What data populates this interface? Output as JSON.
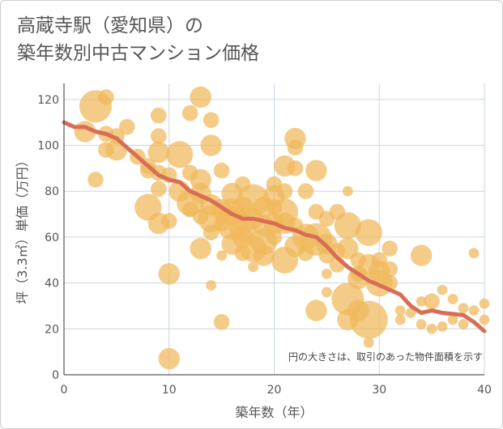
{
  "title": {
    "line1": "高蔵寺駅（愛知県）の",
    "line2": "築年数別中古マンション価格"
  },
  "colors": {
    "bubble": "#f0b85a",
    "trend": "#d86e55",
    "grid": "#c9d6e3",
    "axis": "#333333"
  },
  "chart_data": {
    "type": "scatter",
    "xlabel": "築年数（年）",
    "ylabel": "坪（3.3㎡）単価（万円）",
    "xlim": [
      0,
      40
    ],
    "ylim": [
      0,
      127
    ],
    "xticks": [
      "0",
      "10",
      "20",
      "30",
      "40"
    ],
    "yticks": [
      "0",
      "20",
      "40",
      "60",
      "80",
      "100",
      "120"
    ],
    "xtick_values": [
      0,
      10,
      20,
      30,
      40
    ],
    "ytick_values": [
      0,
      20,
      40,
      60,
      80,
      100,
      120
    ],
    "grid": true,
    "annotation": "円の大きさは、取引のあった物件面積を示す",
    "points": [
      {
        "x": 3,
        "y": 117,
        "s": 5
      },
      {
        "x": 4,
        "y": 121,
        "s": 2
      },
      {
        "x": 2,
        "y": 106,
        "s": 3
      },
      {
        "x": 4,
        "y": 105,
        "s": 2
      },
      {
        "x": 5,
        "y": 104,
        "s": 2
      },
      {
        "x": 6,
        "y": 108,
        "s": 2
      },
      {
        "x": 5,
        "y": 98,
        "s": 3
      },
      {
        "x": 4,
        "y": 98,
        "s": 2
      },
      {
        "x": 3,
        "y": 85,
        "s": 2
      },
      {
        "x": 7,
        "y": 95,
        "s": 2
      },
      {
        "x": 8,
        "y": 91,
        "s": 2
      },
      {
        "x": 8,
        "y": 89,
        "s": 2
      },
      {
        "x": 9,
        "y": 113,
        "s": 2
      },
      {
        "x": 9,
        "y": 104,
        "s": 2
      },
      {
        "x": 9,
        "y": 97,
        "s": 3
      },
      {
        "x": 9,
        "y": 88,
        "s": 2
      },
      {
        "x": 9,
        "y": 81,
        "s": 2
      },
      {
        "x": 8,
        "y": 73,
        "s": 4
      },
      {
        "x": 9,
        "y": 66,
        "s": 3
      },
      {
        "x": 10,
        "y": 87,
        "s": 2
      },
      {
        "x": 10,
        "y": 67,
        "s": 2
      },
      {
        "x": 10,
        "y": 44,
        "s": 3
      },
      {
        "x": 10,
        "y": 7,
        "s": 3
      },
      {
        "x": 11,
        "y": 96,
        "s": 4
      },
      {
        "x": 11,
        "y": 80,
        "s": 3
      },
      {
        "x": 12,
        "y": 114,
        "s": 2
      },
      {
        "x": 12,
        "y": 88,
        "s": 2
      },
      {
        "x": 12,
        "y": 75,
        "s": 4
      },
      {
        "x": 12,
        "y": 72,
        "s": 2
      },
      {
        "x": 13,
        "y": 121,
        "s": 3
      },
      {
        "x": 13,
        "y": 85,
        "s": 3
      },
      {
        "x": 13,
        "y": 79,
        "s": 3
      },
      {
        "x": 13,
        "y": 69,
        "s": 2
      },
      {
        "x": 13,
        "y": 55,
        "s": 3
      },
      {
        "x": 14,
        "y": 111,
        "s": 2
      },
      {
        "x": 14,
        "y": 100,
        "s": 3
      },
      {
        "x": 14,
        "y": 74,
        "s": 3
      },
      {
        "x": 14,
        "y": 68,
        "s": 4
      },
      {
        "x": 14,
        "y": 62,
        "s": 2
      },
      {
        "x": 14,
        "y": 39,
        "s": 1
      },
      {
        "x": 15,
        "y": 89,
        "s": 2
      },
      {
        "x": 15,
        "y": 72,
        "s": 3
      },
      {
        "x": 15,
        "y": 66,
        "s": 2
      },
      {
        "x": 15,
        "y": 52,
        "s": 1
      },
      {
        "x": 15,
        "y": 23,
        "s": 2
      },
      {
        "x": 16,
        "y": 79,
        "s": 3
      },
      {
        "x": 16,
        "y": 71,
        "s": 4
      },
      {
        "x": 16,
        "y": 66,
        "s": 5
      },
      {
        "x": 16,
        "y": 57,
        "s": 3
      },
      {
        "x": 17,
        "y": 83,
        "s": 2
      },
      {
        "x": 17,
        "y": 73,
        "s": 3
      },
      {
        "x": 17,
        "y": 64,
        "s": 4
      },
      {
        "x": 17,
        "y": 60,
        "s": 3
      },
      {
        "x": 17,
        "y": 53,
        "s": 2
      },
      {
        "x": 18,
        "y": 76,
        "s": 5
      },
      {
        "x": 18,
        "y": 68,
        "s": 3
      },
      {
        "x": 18,
        "y": 55,
        "s": 4
      },
      {
        "x": 18,
        "y": 47,
        "s": 1
      },
      {
        "x": 19,
        "y": 73,
        "s": 3
      },
      {
        "x": 19,
        "y": 65,
        "s": 3
      },
      {
        "x": 19,
        "y": 58,
        "s": 4
      },
      {
        "x": 19,
        "y": 52,
        "s": 3
      },
      {
        "x": 20,
        "y": 83,
        "s": 2
      },
      {
        "x": 20,
        "y": 78,
        "s": 3
      },
      {
        "x": 20,
        "y": 73,
        "s": 2
      },
      {
        "x": 20,
        "y": 66,
        "s": 3
      },
      {
        "x": 20,
        "y": 60,
        "s": 2
      },
      {
        "x": 21,
        "y": 91,
        "s": 3
      },
      {
        "x": 21,
        "y": 80,
        "s": 2
      },
      {
        "x": 21,
        "y": 71,
        "s": 4
      },
      {
        "x": 21,
        "y": 66,
        "s": 3
      },
      {
        "x": 21,
        "y": 50,
        "s": 4
      },
      {
        "x": 22,
        "y": 103,
        "s": 3
      },
      {
        "x": 22,
        "y": 99,
        "s": 2
      },
      {
        "x": 22,
        "y": 90,
        "s": 2
      },
      {
        "x": 22,
        "y": 65,
        "s": 2
      },
      {
        "x": 22,
        "y": 56,
        "s": 3
      },
      {
        "x": 23,
        "y": 80,
        "s": 2
      },
      {
        "x": 23,
        "y": 60,
        "s": 4
      },
      {
        "x": 23,
        "y": 53,
        "s": 2
      },
      {
        "x": 24,
        "y": 89,
        "s": 3
      },
      {
        "x": 24,
        "y": 71,
        "s": 2
      },
      {
        "x": 24,
        "y": 59,
        "s": 5
      },
      {
        "x": 24,
        "y": 28,
        "s": 3
      },
      {
        "x": 25,
        "y": 68,
        "s": 2
      },
      {
        "x": 25,
        "y": 57,
        "s": 3
      },
      {
        "x": 25,
        "y": 52,
        "s": 2
      },
      {
        "x": 25,
        "y": 36,
        "s": 1
      },
      {
        "x": 25,
        "y": 44,
        "s": 1
      },
      {
        "x": 26,
        "y": 71,
        "s": 2
      },
      {
        "x": 26,
        "y": 54,
        "s": 2
      },
      {
        "x": 26,
        "y": 48,
        "s": 2
      },
      {
        "x": 27,
        "y": 80,
        "s": 1
      },
      {
        "x": 27,
        "y": 65,
        "s": 4
      },
      {
        "x": 27,
        "y": 55,
        "s": 3
      },
      {
        "x": 27,
        "y": 33,
        "s": 5
      },
      {
        "x": 27,
        "y": 24,
        "s": 3
      },
      {
        "x": 28,
        "y": 50,
        "s": 2
      },
      {
        "x": 28,
        "y": 44,
        "s": 2
      },
      {
        "x": 28,
        "y": 42,
        "s": 3
      },
      {
        "x": 28,
        "y": 28,
        "s": 3
      },
      {
        "x": 29,
        "y": 62,
        "s": 4
      },
      {
        "x": 29,
        "y": 48,
        "s": 3
      },
      {
        "x": 29,
        "y": 24,
        "s": 6
      },
      {
        "x": 29,
        "y": 14,
        "s": 1
      },
      {
        "x": 30,
        "y": 50,
        "s": 2
      },
      {
        "x": 30,
        "y": 45,
        "s": 3
      },
      {
        "x": 30,
        "y": 40,
        "s": 4
      },
      {
        "x": 31,
        "y": 55,
        "s": 2
      },
      {
        "x": 31,
        "y": 46,
        "s": 2
      },
      {
        "x": 31,
        "y": 40,
        "s": 2
      },
      {
        "x": 32,
        "y": 28,
        "s": 1
      },
      {
        "x": 32,
        "y": 24,
        "s": 1
      },
      {
        "x": 33,
        "y": 27,
        "s": 1
      },
      {
        "x": 34,
        "y": 52,
        "s": 3
      },
      {
        "x": 34,
        "y": 32,
        "s": 1
      },
      {
        "x": 34,
        "y": 22,
        "s": 1
      },
      {
        "x": 35,
        "y": 32,
        "s": 2
      },
      {
        "x": 35,
        "y": 20,
        "s": 1
      },
      {
        "x": 36,
        "y": 37,
        "s": 1
      },
      {
        "x": 36,
        "y": 21,
        "s": 1
      },
      {
        "x": 37,
        "y": 33,
        "s": 1
      },
      {
        "x": 37,
        "y": 24,
        "s": 1
      },
      {
        "x": 38,
        "y": 29,
        "s": 1
      },
      {
        "x": 38,
        "y": 22,
        "s": 1
      },
      {
        "x": 39,
        "y": 53,
        "s": 1
      },
      {
        "x": 39,
        "y": 28,
        "s": 1
      },
      {
        "x": 40,
        "y": 31,
        "s": 1
      },
      {
        "x": 40,
        "y": 24,
        "s": 1
      }
    ],
    "trend": {
      "name": "",
      "x": [
        0,
        1,
        2,
        3,
        4,
        5,
        6,
        7,
        8,
        9,
        10,
        11,
        12,
        13,
        14,
        15,
        16,
        17,
        18,
        19,
        20,
        21,
        22,
        23,
        24,
        25,
        26,
        27,
        28,
        29,
        30,
        31,
        32,
        33,
        34,
        35,
        36,
        37,
        38,
        39,
        40
      ],
      "y": [
        110,
        108,
        108,
        106,
        105,
        103,
        99,
        95,
        91,
        87,
        85,
        84,
        80,
        78,
        76,
        73,
        70,
        68,
        68,
        67,
        66,
        64,
        63,
        61,
        60,
        56,
        51,
        47,
        44,
        41,
        39,
        37,
        35,
        30,
        27,
        28,
        27,
        26.5,
        26,
        23,
        19
      ]
    }
  }
}
